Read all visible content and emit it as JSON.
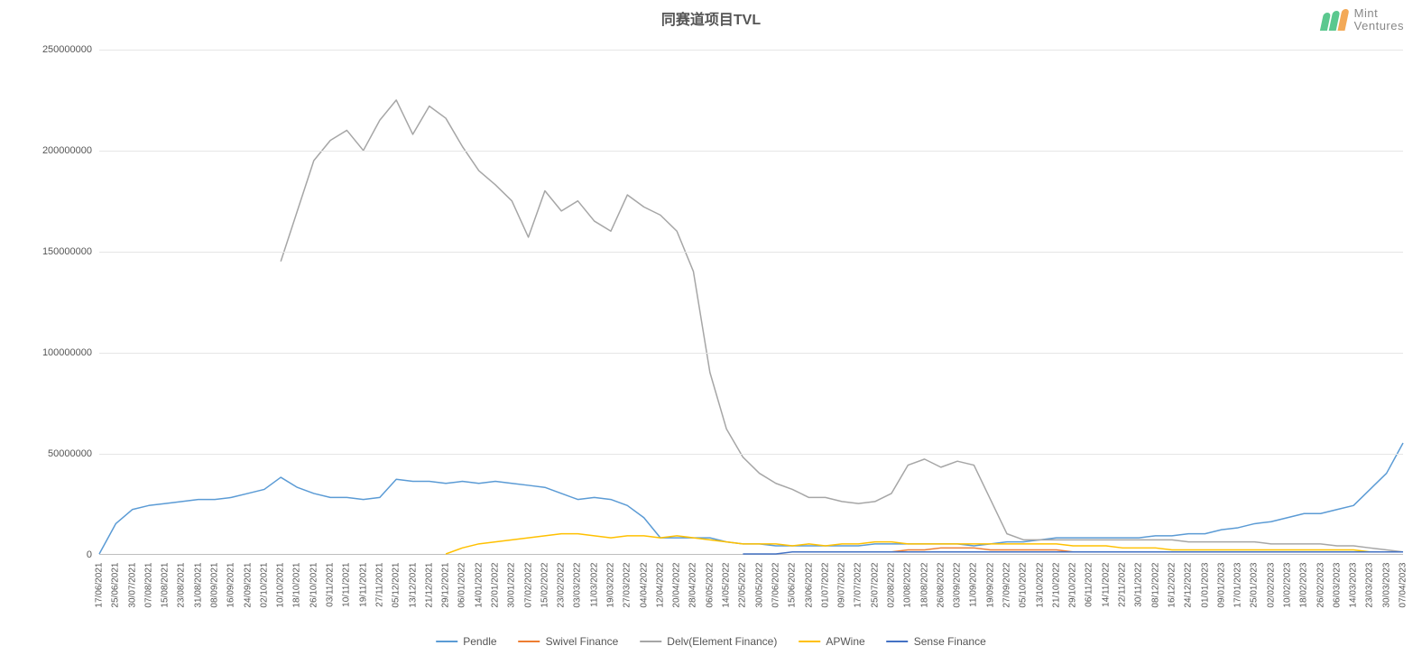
{
  "title": "同赛道项目TVL",
  "logo": {
    "name": "Mint\nVentures",
    "leaf_colors": [
      "#5bc88f",
      "#5bc88f",
      "#f3a957"
    ]
  },
  "chart": {
    "type": "line",
    "background_color": "#ffffff",
    "grid_color": "#e6e6e6",
    "axis_color": "#bfbfbf",
    "title_fontsize": 16,
    "label_fontsize": 11,
    "ylim": [
      0,
      250000000
    ],
    "yticks": [
      0,
      50000000,
      100000000,
      150000000,
      200000000,
      250000000
    ],
    "x_labels": [
      "17/06/2021",
      "25/06/2021",
      "30/07/2021",
      "07/08/2021",
      "15/08/2021",
      "23/08/2021",
      "31/08/2021",
      "08/09/2021",
      "16/09/2021",
      "24/09/2021",
      "02/10/2021",
      "10/10/2021",
      "18/10/2021",
      "26/10/2021",
      "03/11/2021",
      "10/11/2021",
      "19/11/2021",
      "27/11/2021",
      "05/12/2021",
      "13/12/2021",
      "21/12/2021",
      "29/12/2021",
      "06/01/2022",
      "14/01/2022",
      "22/01/2022",
      "30/01/2022",
      "07/02/2022",
      "15/02/2022",
      "23/02/2022",
      "03/03/2022",
      "11/03/2022",
      "19/03/2022",
      "27/03/2022",
      "04/04/2022",
      "12/04/2022",
      "20/04/2022",
      "28/04/2022",
      "06/05/2022",
      "14/05/2022",
      "22/05/2022",
      "30/05/2022",
      "07/06/2022",
      "15/06/2022",
      "23/06/2022",
      "01/07/2022",
      "09/07/2022",
      "17/07/2022",
      "25/07/2022",
      "02/08/2022",
      "10/08/2022",
      "18/08/2022",
      "26/08/2022",
      "03/09/2022",
      "11/09/2022",
      "19/09/2022",
      "27/09/2022",
      "05/10/2022",
      "13/10/2022",
      "21/10/2022",
      "29/10/2022",
      "06/11/2022",
      "14/11/2022",
      "22/11/2022",
      "30/11/2022",
      "08/12/2022",
      "16/12/2022",
      "24/12/2022",
      "01/01/2023",
      "09/01/2023",
      "17/01/2023",
      "25/01/2023",
      "02/02/2023",
      "10/02/2023",
      "18/02/2023",
      "26/02/2023",
      "06/03/2023",
      "14/03/2023",
      "23/03/2023",
      "30/03/2023",
      "07/04/2023"
    ],
    "series": [
      {
        "name": "Pendle",
        "color": "#5b9bd5",
        "width": 1.5,
        "data": [
          0,
          15,
          22,
          24,
          25,
          26,
          27,
          27,
          28,
          30,
          32,
          38,
          33,
          30,
          28,
          28,
          27,
          28,
          37,
          36,
          36,
          35,
          36,
          35,
          36,
          35,
          34,
          33,
          30,
          27,
          28,
          27,
          24,
          18,
          8,
          8,
          8,
          8,
          6,
          5,
          5,
          4,
          4,
          4,
          4,
          4,
          4,
          5,
          5,
          5,
          5,
          5,
          5,
          4,
          5,
          6,
          6,
          7,
          8,
          8,
          8,
          8,
          8,
          8,
          9,
          9,
          10,
          10,
          12,
          13,
          15,
          16,
          18,
          20,
          20,
          22,
          24,
          32,
          40,
          55
        ]
      },
      {
        "name": "Swivel Finance",
        "color": "#ed7d31",
        "width": 1.5,
        "data": [
          null,
          null,
          null,
          null,
          null,
          null,
          null,
          null,
          null,
          null,
          null,
          null,
          null,
          null,
          null,
          null,
          null,
          null,
          null,
          null,
          null,
          null,
          null,
          null,
          null,
          null,
          null,
          null,
          null,
          null,
          null,
          null,
          null,
          null,
          null,
          null,
          null,
          null,
          null,
          null,
          null,
          null,
          null,
          null,
          null,
          null,
          1,
          1,
          1,
          2,
          2,
          3,
          3,
          3,
          2,
          2,
          2,
          2,
          2,
          1,
          1,
          1,
          1,
          1,
          1,
          1,
          1,
          1,
          1,
          1,
          1,
          1,
          1,
          1,
          1,
          1,
          1,
          1,
          1,
          1
        ]
      },
      {
        "name": "Delv(Element Finance)",
        "color": "#a6a6a6",
        "width": 1.5,
        "data": [
          null,
          null,
          null,
          null,
          null,
          null,
          null,
          null,
          null,
          null,
          null,
          145,
          170,
          195,
          205,
          210,
          200,
          215,
          225,
          208,
          222,
          216,
          202,
          190,
          183,
          175,
          157,
          180,
          170,
          175,
          165,
          160,
          178,
          172,
          168,
          160,
          140,
          90,
          62,
          48,
          40,
          35,
          32,
          28,
          28,
          26,
          25,
          26,
          30,
          44,
          47,
          43,
          46,
          44,
          27,
          10,
          7,
          7,
          7,
          7,
          7,
          7,
          7,
          7,
          7,
          7,
          6,
          6,
          6,
          6,
          6,
          5,
          5,
          5,
          5,
          4,
          4,
          3,
          2,
          1
        ]
      },
      {
        "name": "APWine",
        "color": "#ffc000",
        "width": 1.5,
        "data": [
          null,
          null,
          null,
          null,
          null,
          null,
          null,
          null,
          null,
          null,
          null,
          null,
          null,
          null,
          null,
          null,
          null,
          null,
          null,
          null,
          null,
          0,
          3,
          5,
          6,
          7,
          8,
          9,
          10,
          10,
          9,
          8,
          9,
          9,
          8,
          9,
          8,
          7,
          6,
          5,
          5,
          5,
          4,
          5,
          4,
          5,
          5,
          6,
          6,
          5,
          5,
          5,
          5,
          5,
          5,
          5,
          5,
          5,
          5,
          4,
          4,
          4,
          3,
          3,
          3,
          2,
          2,
          2,
          2,
          2,
          2,
          2,
          2,
          2,
          2,
          2,
          2,
          1,
          1,
          1
        ]
      },
      {
        "name": "Sense Finance",
        "color": "#4472c4",
        "width": 1.5,
        "data": [
          null,
          null,
          null,
          null,
          null,
          null,
          null,
          null,
          null,
          null,
          null,
          null,
          null,
          null,
          null,
          null,
          null,
          null,
          null,
          null,
          null,
          null,
          null,
          null,
          null,
          null,
          null,
          null,
          null,
          null,
          null,
          null,
          null,
          null,
          null,
          null,
          null,
          null,
          null,
          0,
          0,
          0,
          1,
          1,
          1,
          1,
          1,
          1,
          1,
          1,
          1,
          1,
          1,
          1,
          1,
          1,
          1,
          1,
          1,
          1,
          1,
          1,
          1,
          1,
          1,
          1,
          1,
          1,
          1,
          1,
          1,
          1,
          1,
          1,
          1,
          1,
          1,
          1,
          1,
          1
        ]
      }
    ],
    "legend_position": "bottom"
  }
}
